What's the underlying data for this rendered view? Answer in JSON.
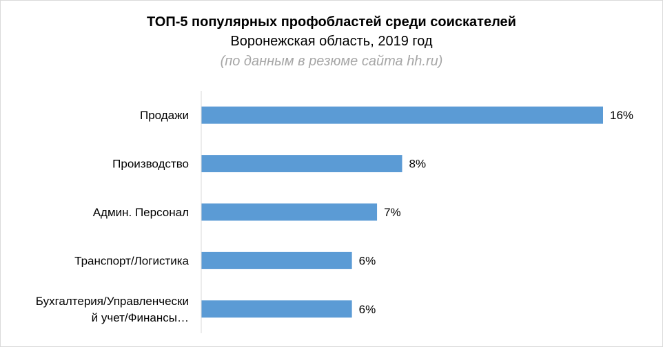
{
  "chart_data": {
    "type": "bar",
    "orientation": "horizontal",
    "title": "ТОП-5 популярных профобластей среди соискателей",
    "subtitle": "Воронежская область, 2019 год",
    "note": "(по данным в резюме сайта hh.ru)",
    "categories": [
      "Продажи",
      "Производство",
      "Админ. Персонал",
      "Транспорт/Логистика",
      "Бухгалтерия/Управленческий учет/Финансы…"
    ],
    "category_display_lines": [
      [
        "Продажи"
      ],
      [
        "Производство"
      ],
      [
        "Админ. Персонал"
      ],
      [
        "Транспорт/Логистика"
      ],
      [
        "Бухгалтерия/Управленчески",
        "й учет/Финансы…"
      ]
    ],
    "values": [
      16,
      8,
      7,
      6,
      6
    ],
    "value_labels": [
      "16%",
      "8%",
      "7%",
      "6%",
      "6%"
    ],
    "unit": "%",
    "bar_color": "#5b9bd5",
    "axis_color": "#d9d9d9",
    "xlim": [
      0,
      16
    ],
    "grid": false,
    "legend": "none"
  }
}
